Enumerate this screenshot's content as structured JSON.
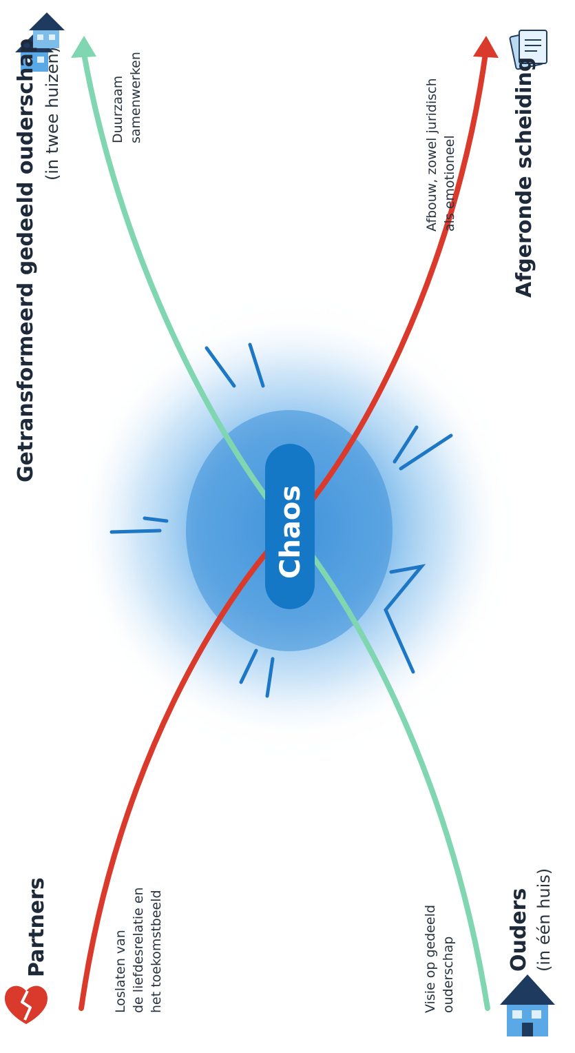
{
  "colors": {
    "background": "#ffffff",
    "accent_blue": "#1578c6",
    "chaos_cloud": "#4b9ee0",
    "partners_line": "#d93a2b",
    "parents_line": "#7fd6b0",
    "text": "#1e2a3a"
  },
  "labels": {
    "partners": "Partners",
    "partners_note": [
      "Loslaten van",
      "de liefdesrelatie en",
      "het toekomstbeeld"
    ],
    "parents": "Ouders",
    "parents_sub": "(in één huis)",
    "parents_note": [
      "Visie op gedeeld",
      "ouderschap"
    ],
    "chaos": "Chaos",
    "shared_parenting": "Getransformeerd gedeeld ouderschap",
    "shared_parenting_sub": "(in twee huizen)",
    "shared_parenting_note": [
      "Duurzaam",
      "samenwerken"
    ],
    "divorce": "Afgeronde scheiding",
    "divorce_note": [
      "Afbouw, zowel juridisch",
      "als emotioneel"
    ]
  },
  "icons": {
    "partners": "broken-heart-icon",
    "parents": "house-icon",
    "shared_parenting": "two-houses-icon",
    "divorce": "documents-icon"
  }
}
